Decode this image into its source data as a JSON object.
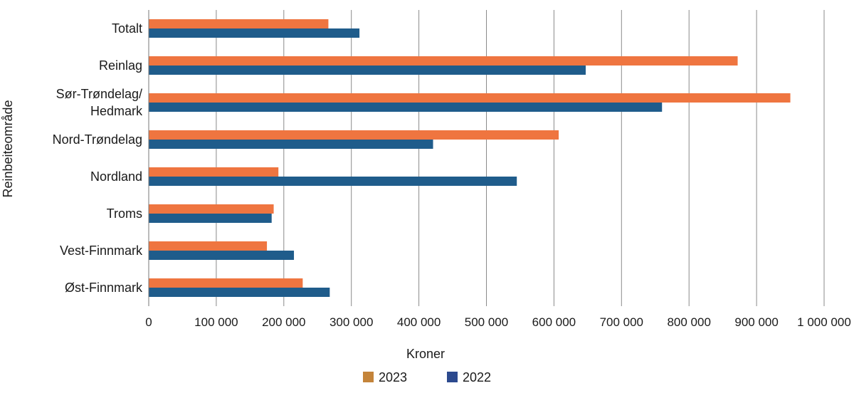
{
  "chart_data": {
    "type": "bar",
    "orientation": "horizontal",
    "categories": [
      "Totalt",
      "Reinlag",
      "Sør-Trøndelag/ Hedmark",
      "Nord-Trøndelag",
      "Nordland",
      "Troms",
      "Vest-Finnmark",
      "Øst-Finnmark"
    ],
    "category_lines": [
      [
        "Totalt"
      ],
      [
        "Reinlag"
      ],
      [
        "Sør-Trøndelag/",
        "Hedmark"
      ],
      [
        "Nord-Trøndelag"
      ],
      [
        "Nordland"
      ],
      [
        "Troms"
      ],
      [
        "Vest-Finnmark"
      ],
      [
        "Øst-Finnmark"
      ]
    ],
    "series": [
      {
        "name": "2023",
        "color": "#ef7540",
        "values": [
          266000,
          872000,
          950000,
          607000,
          192000,
          185000,
          175000,
          228000
        ]
      },
      {
        "name": "2022",
        "color": "#1f5c8b",
        "values": [
          312000,
          647000,
          760000,
          421000,
          545000,
          182000,
          215000,
          268000
        ]
      }
    ],
    "xlim": [
      0,
      1000000
    ],
    "xticks": [
      0,
      100000,
      200000,
      300000,
      400000,
      500000,
      600000,
      700000,
      800000,
      900000,
      1000000
    ],
    "xtick_labels": [
      "0",
      "100 000",
      "200 000",
      "300 000",
      "400 000",
      "500 000",
      "600 000",
      "700 000",
      "800 000",
      "900 000",
      "1 000 000"
    ],
    "xlabel": "Kroner",
    "ylabel": "Reinbeiteområde",
    "grid": "vertical",
    "legend_position": "bottom-center",
    "legend": [
      {
        "label": "2023",
        "swatch_color": "#c4843a"
      },
      {
        "label": "2022",
        "swatch_color": "#2c4a8e"
      }
    ]
  }
}
